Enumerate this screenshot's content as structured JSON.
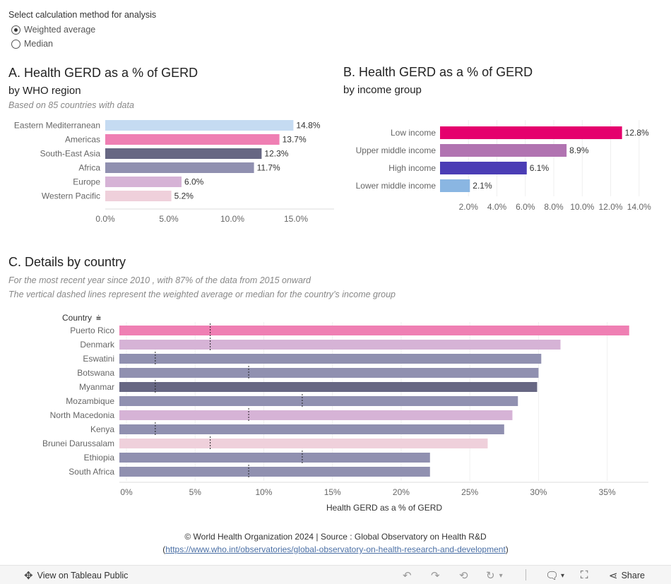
{
  "controls": {
    "prompt": "Select calculation method for analysis",
    "options": [
      "Weighted average",
      "Median"
    ],
    "selected": "Weighted average"
  },
  "panel_a": {
    "title": "A. Health GERD as a % of GERD",
    "subtitle": "by WHO region",
    "note": "Based on  85 countries with data"
  },
  "panel_b": {
    "title": "B. Health GERD as a % of GERD",
    "subtitle": "by income group"
  },
  "panel_c": {
    "title": "C. Details by country",
    "note1": "For the most recent year since 2010 , with 87% of the data from 2015 onward",
    "note2": "The vertical dashed lines represent the weighted average or median for the country’s income group"
  },
  "footer": {
    "line1": "© World Health Organization 2024 | Source : Global Observatory on Health R&D",
    "open_paren": "(",
    "link": "https://www.who.int/observatories/global-observatory-on-health-research-and-development",
    "close_paren": ")"
  },
  "toolbar": {
    "view_label": "View on Tableau Public",
    "share_label": "Share"
  },
  "chart_data": [
    {
      "type": "bar",
      "orientation": "horizontal",
      "title": "A. Health GERD as a % of GERD",
      "categories": [
        "Eastern Mediterranean",
        "Americas",
        "South-East Asia",
        "Africa",
        "Europe",
        "Western Pacific"
      ],
      "values": [
        14.8,
        13.7,
        12.3,
        11.7,
        6.0,
        5.2
      ],
      "labels": [
        "14.8%",
        "13.7%",
        "12.3%",
        "11.7%",
        "6.0%",
        "5.2%"
      ],
      "colors": [
        "#c5dbf2",
        "#ef7fb3",
        "#676783",
        "#9090b0",
        "#d6b3d6",
        "#efd0db"
      ],
      "xlim": [
        0,
        18
      ],
      "xticks": [
        0,
        5,
        10,
        15
      ],
      "xtick_labels": [
        "0.0%",
        "5.0%",
        "10.0%",
        "15.0%"
      ]
    },
    {
      "type": "bar",
      "orientation": "horizontal",
      "title": "B. Health GERD as a % of GERD",
      "categories": [
        "Low income",
        "Upper middle income",
        "High income",
        "Lower middle income"
      ],
      "values": [
        12.8,
        8.9,
        6.1,
        2.1
      ],
      "labels": [
        "12.8%",
        "8.9%",
        "6.1%",
        "2.1%"
      ],
      "colors": [
        "#e5006d",
        "#b173b1",
        "#4b3db5",
        "#8ab6e2"
      ],
      "xlim": [
        0,
        15.5
      ],
      "xticks": [
        2,
        4,
        6,
        8,
        10,
        12,
        14
      ],
      "xtick_labels": [
        "2.0%",
        "4.0%",
        "6.0%",
        "8.0%",
        "10.0%",
        "12.0%",
        "14.0%"
      ]
    },
    {
      "type": "bar",
      "orientation": "horizontal",
      "title": "C. Details by country",
      "column_header": "Country",
      "xlabel": "Health GERD as a % of GERD",
      "categories": [
        "Puerto Rico",
        "Denmark",
        "Eswatini",
        "Botswana",
        "Myanmar",
        "Mozambique",
        "North Macedonia",
        "Kenya",
        "Brunei Darussalam",
        "Ethiopia",
        "South Africa"
      ],
      "values": [
        36.6,
        31.6,
        30.2,
        30.0,
        29.9,
        28.5,
        28.1,
        27.5,
        26.3,
        22.1,
        22.1
      ],
      "reference_lines": [
        6.1,
        6.1,
        2.1,
        8.9,
        2.1,
        12.8,
        8.9,
        2.1,
        6.1,
        12.8,
        8.9
      ],
      "colors": [
        "#ef7fb3",
        "#d6b3d6",
        "#9090b0",
        "#9090b0",
        "#676783",
        "#9090b0",
        "#d6b3d6",
        "#9090b0",
        "#efd0db",
        "#9090b0",
        "#9090b0"
      ],
      "xlim": [
        0,
        38
      ],
      "xticks": [
        0,
        5,
        10,
        15,
        20,
        25,
        30,
        35
      ],
      "xtick_labels": [
        "0%",
        "5%",
        "10%",
        "15%",
        "20%",
        "25%",
        "30%",
        "35%"
      ]
    }
  ]
}
